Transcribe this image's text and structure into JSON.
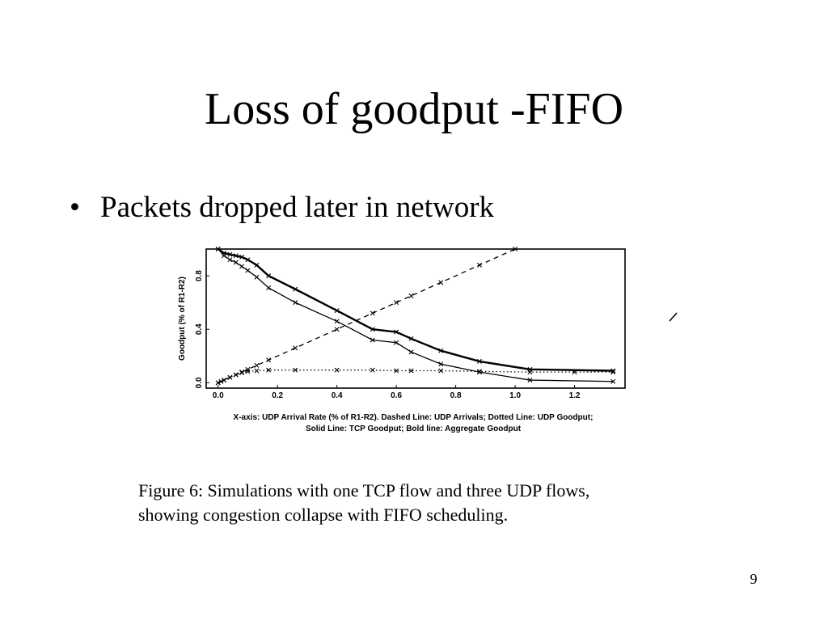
{
  "slide": {
    "title": "Loss of goodput -FIFO",
    "bullets": [
      {
        "marker": "•",
        "text": "Packets dropped later in network"
      }
    ],
    "figure_caption": [
      "Figure 6: Simulations with one TCP flow and three UDP flows,",
      "showing congestion collapse with FIFO scheduling."
    ],
    "page_number": "9"
  },
  "chart_data": {
    "type": "line",
    "ylabel": "Goodput (% of R1-R2)",
    "xlabel": "",
    "caption_lines": [
      "X-axis: UDP Arrival Rate (% of R1-R2).  Dashed Line: UDP Arrivals; Dotted Line: UDP Goodput;",
      "Solid Line: TCP Goodput; Bold line: Aggregate Goodput"
    ],
    "xlim": [
      -0.04,
      1.37
    ],
    "ylim": [
      -0.04,
      1.0
    ],
    "x_ticks": [
      "0.0",
      "0.2",
      "0.4",
      "0.6",
      "0.8",
      "1.0",
      "1.2"
    ],
    "y_ticks": [
      "0.0",
      "0.4",
      "0.8"
    ],
    "legend": "none",
    "grid": false,
    "series": [
      {
        "style": "dashed",
        "x": [
          0.0,
          0.01,
          0.02,
          0.04,
          0.06,
          0.08,
          0.1,
          0.13,
          0.17,
          0.26,
          0.4,
          0.52,
          0.6,
          0.65,
          0.75,
          0.88,
          1.0
        ],
        "y": [
          0.0,
          0.01,
          0.02,
          0.04,
          0.06,
          0.08,
          0.1,
          0.13,
          0.17,
          0.26,
          0.4,
          0.52,
          0.6,
          0.65,
          0.75,
          0.88,
          1.0
        ]
      },
      {
        "style": "dotted",
        "x": [
          0.0,
          0.02,
          0.04,
          0.06,
          0.08,
          0.1,
          0.13,
          0.17,
          0.26,
          0.4,
          0.52,
          0.6,
          0.65,
          0.75,
          0.88,
          1.05,
          1.2,
          1.33
        ],
        "y": [
          0.0,
          0.02,
          0.04,
          0.06,
          0.075,
          0.085,
          0.09,
          0.095,
          0.095,
          0.095,
          0.095,
          0.09,
          0.09,
          0.09,
          0.085,
          0.08,
          0.08,
          0.08
        ]
      },
      {
        "style": "solid",
        "x": [
          0.0,
          0.02,
          0.04,
          0.06,
          0.08,
          0.1,
          0.13,
          0.17,
          0.26,
          0.4,
          0.52,
          0.6,
          0.65,
          0.75,
          0.88,
          1.05,
          1.33
        ],
        "y": [
          1.0,
          0.95,
          0.92,
          0.9,
          0.87,
          0.84,
          0.79,
          0.71,
          0.6,
          0.46,
          0.32,
          0.3,
          0.23,
          0.14,
          0.08,
          0.02,
          0.01
        ]
      },
      {
        "style": "bold",
        "x": [
          0.0,
          0.02,
          0.04,
          0.06,
          0.08,
          0.1,
          0.13,
          0.17,
          0.26,
          0.4,
          0.52,
          0.6,
          0.65,
          0.75,
          0.88,
          1.05,
          1.33
        ],
        "y": [
          1.0,
          0.97,
          0.96,
          0.95,
          0.94,
          0.92,
          0.88,
          0.8,
          0.7,
          0.54,
          0.4,
          0.38,
          0.33,
          0.24,
          0.16,
          0.1,
          0.09
        ]
      }
    ]
  }
}
